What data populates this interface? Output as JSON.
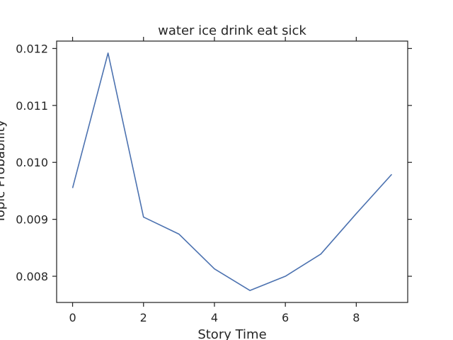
{
  "chart_data": {
    "type": "line",
    "title": "water ice drink eat sick",
    "xlabel": "Story Time",
    "ylabel": "Topic Probability",
    "x": [
      0,
      1,
      2,
      3,
      4,
      5,
      6,
      7,
      8,
      9
    ],
    "series": [
      {
        "values": [
          0.00955,
          0.01192,
          0.00904,
          0.00874,
          0.00813,
          0.00775,
          0.008,
          0.00839,
          0.0091,
          0.00979
        ],
        "color": "#4c72b0"
      }
    ],
    "xlim": [
      -0.45,
      9.45
    ],
    "ylim": [
      0.00754,
      0.01213
    ],
    "xticks": [
      0,
      2,
      4,
      6,
      8
    ],
    "xtick_labels": [
      "0",
      "2",
      "4",
      "6",
      "8"
    ],
    "yticks": [
      0.008,
      0.009,
      0.01,
      0.011,
      0.012
    ],
    "ytick_labels": [
      "0.008",
      "0.009",
      "0.010",
      "0.011",
      "0.012"
    ],
    "grid": false,
    "legend": "none"
  }
}
